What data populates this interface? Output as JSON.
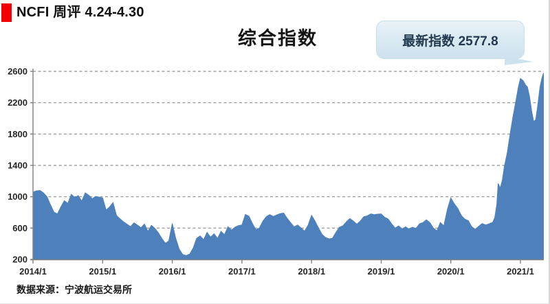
{
  "header": {
    "title": "NCFI 周评 4.24-4.30",
    "marker_color": "#f40202"
  },
  "chart": {
    "title": "综合指数",
    "callout": {
      "text": "最新指数 2577.8",
      "bg_color": "#d7e8f1",
      "text_color": "#22394e"
    }
  },
  "footer": {
    "source": "数据来源：宁波航运交易所"
  },
  "chart_data": {
    "type": "area",
    "title": "综合指数",
    "xlabel": "",
    "ylabel": "",
    "ylim": [
      200,
      2600
    ],
    "y_ticks": [
      200,
      600,
      1000,
      1400,
      1800,
      2200,
      2600
    ],
    "x_tick_labels": [
      "2014/1",
      "2015/1",
      "2016/1",
      "2017/1",
      "2018/1",
      "2019/1",
      "2020/1",
      "2021/1"
    ],
    "x_range_years": [
      2014.0,
      2021.33
    ],
    "grid": "horizontal-dashed",
    "legend": "none",
    "area_color": "#4e80bc",
    "axis_color": "#7f7f7f",
    "grid_color": "#8f8f8f",
    "latest_value": 2577.8,
    "annotations": [
      {
        "text": "最新指数 2577.8",
        "target_x": 2021.33,
        "target_y": 2577.8
      }
    ],
    "series": [
      {
        "name": "综合指数",
        "points": [
          [
            2014.0,
            1060
          ],
          [
            2014.05,
            1075
          ],
          [
            2014.1,
            1080
          ],
          [
            2014.15,
            1050
          ],
          [
            2014.2,
            1000
          ],
          [
            2014.25,
            900
          ],
          [
            2014.3,
            805
          ],
          [
            2014.35,
            780
          ],
          [
            2014.4,
            870
          ],
          [
            2014.45,
            950
          ],
          [
            2014.5,
            915
          ],
          [
            2014.55,
            1030
          ],
          [
            2014.6,
            990
          ],
          [
            2014.65,
            1015
          ],
          [
            2014.7,
            945
          ],
          [
            2014.75,
            1050
          ],
          [
            2014.8,
            1020
          ],
          [
            2014.85,
            975
          ],
          [
            2014.9,
            1005
          ],
          [
            2014.95,
            995
          ],
          [
            2015.0,
            985
          ],
          [
            2015.05,
            830
          ],
          [
            2015.1,
            870
          ],
          [
            2015.15,
            925
          ],
          [
            2015.2,
            760
          ],
          [
            2015.25,
            718
          ],
          [
            2015.3,
            680
          ],
          [
            2015.35,
            650
          ],
          [
            2015.4,
            618
          ],
          [
            2015.45,
            668
          ],
          [
            2015.5,
            638
          ],
          [
            2015.55,
            605
          ],
          [
            2015.6,
            652
          ],
          [
            2015.65,
            558
          ],
          [
            2015.7,
            635
          ],
          [
            2015.75,
            595
          ],
          [
            2015.8,
            540
          ],
          [
            2015.85,
            468
          ],
          [
            2015.9,
            405
          ],
          [
            2015.95,
            435
          ],
          [
            2016.0,
            660
          ],
          [
            2016.05,
            470
          ],
          [
            2016.1,
            330
          ],
          [
            2016.15,
            262
          ],
          [
            2016.2,
            250
          ],
          [
            2016.25,
            268
          ],
          [
            2016.3,
            345
          ],
          [
            2016.35,
            470
          ],
          [
            2016.4,
            500
          ],
          [
            2016.45,
            452
          ],
          [
            2016.5,
            545
          ],
          [
            2016.55,
            485
          ],
          [
            2016.6,
            528
          ],
          [
            2016.65,
            468
          ],
          [
            2016.7,
            558
          ],
          [
            2016.75,
            515
          ],
          [
            2016.8,
            618
          ],
          [
            2016.85,
            575
          ],
          [
            2016.9,
            612
          ],
          [
            2016.95,
            632
          ],
          [
            2017.0,
            640
          ],
          [
            2017.05,
            775
          ],
          [
            2017.1,
            752
          ],
          [
            2017.15,
            660
          ],
          [
            2017.2,
            580
          ],
          [
            2017.25,
            600
          ],
          [
            2017.3,
            688
          ],
          [
            2017.35,
            745
          ],
          [
            2017.4,
            772
          ],
          [
            2017.45,
            748
          ],
          [
            2017.5,
            768
          ],
          [
            2017.55,
            785
          ],
          [
            2017.6,
            792
          ],
          [
            2017.65,
            725
          ],
          [
            2017.7,
            668
          ],
          [
            2017.75,
            615
          ],
          [
            2017.8,
            640
          ],
          [
            2017.85,
            600
          ],
          [
            2017.9,
            562
          ],
          [
            2017.95,
            635
          ],
          [
            2018.0,
            762
          ],
          [
            2018.05,
            690
          ],
          [
            2018.1,
            600
          ],
          [
            2018.15,
            520
          ],
          [
            2018.2,
            480
          ],
          [
            2018.25,
            462
          ],
          [
            2018.3,
            470
          ],
          [
            2018.35,
            545
          ],
          [
            2018.4,
            610
          ],
          [
            2018.45,
            628
          ],
          [
            2018.5,
            680
          ],
          [
            2018.55,
            722
          ],
          [
            2018.6,
            690
          ],
          [
            2018.65,
            650
          ],
          [
            2018.7,
            690
          ],
          [
            2018.75,
            745
          ],
          [
            2018.8,
            755
          ],
          [
            2018.85,
            782
          ],
          [
            2018.9,
            772
          ],
          [
            2018.95,
            778
          ],
          [
            2019.0,
            780
          ],
          [
            2019.05,
            738
          ],
          [
            2019.1,
            715
          ],
          [
            2019.15,
            655
          ],
          [
            2019.2,
            600
          ],
          [
            2019.25,
            628
          ],
          [
            2019.3,
            590
          ],
          [
            2019.35,
            615
          ],
          [
            2019.4,
            588
          ],
          [
            2019.45,
            612
          ],
          [
            2019.5,
            595
          ],
          [
            2019.55,
            655
          ],
          [
            2019.6,
            670
          ],
          [
            2019.65,
            705
          ],
          [
            2019.7,
            668
          ],
          [
            2019.75,
            600
          ],
          [
            2019.8,
            565
          ],
          [
            2019.85,
            672
          ],
          [
            2019.9,
            628
          ],
          [
            2019.95,
            838
          ],
          [
            2020.0,
            985
          ],
          [
            2020.05,
            910
          ],
          [
            2020.1,
            850
          ],
          [
            2020.15,
            762
          ],
          [
            2020.2,
            715
          ],
          [
            2020.25,
            695
          ],
          [
            2020.3,
            618
          ],
          [
            2020.35,
            585
          ],
          [
            2020.4,
            622
          ],
          [
            2020.45,
            658
          ],
          [
            2020.5,
            640
          ],
          [
            2020.55,
            655
          ],
          [
            2020.6,
            672
          ],
          [
            2020.63,
            730
          ],
          [
            2020.66,
            900
          ],
          [
            2020.68,
            1170
          ],
          [
            2020.71,
            1110
          ],
          [
            2020.74,
            1215
          ],
          [
            2020.77,
            1390
          ],
          [
            2020.81,
            1560
          ],
          [
            2020.85,
            1790
          ],
          [
            2020.89,
            2010
          ],
          [
            2020.93,
            2200
          ],
          [
            2020.97,
            2400
          ],
          [
            2021.0,
            2510
          ],
          [
            2021.04,
            2480
          ],
          [
            2021.07,
            2430
          ],
          [
            2021.1,
            2400
          ],
          [
            2021.13,
            2280
          ],
          [
            2021.16,
            2100
          ],
          [
            2021.19,
            1960
          ],
          [
            2021.22,
            1985
          ],
          [
            2021.25,
            2180
          ],
          [
            2021.28,
            2400
          ],
          [
            2021.31,
            2520
          ],
          [
            2021.33,
            2577.8
          ]
        ]
      }
    ]
  }
}
